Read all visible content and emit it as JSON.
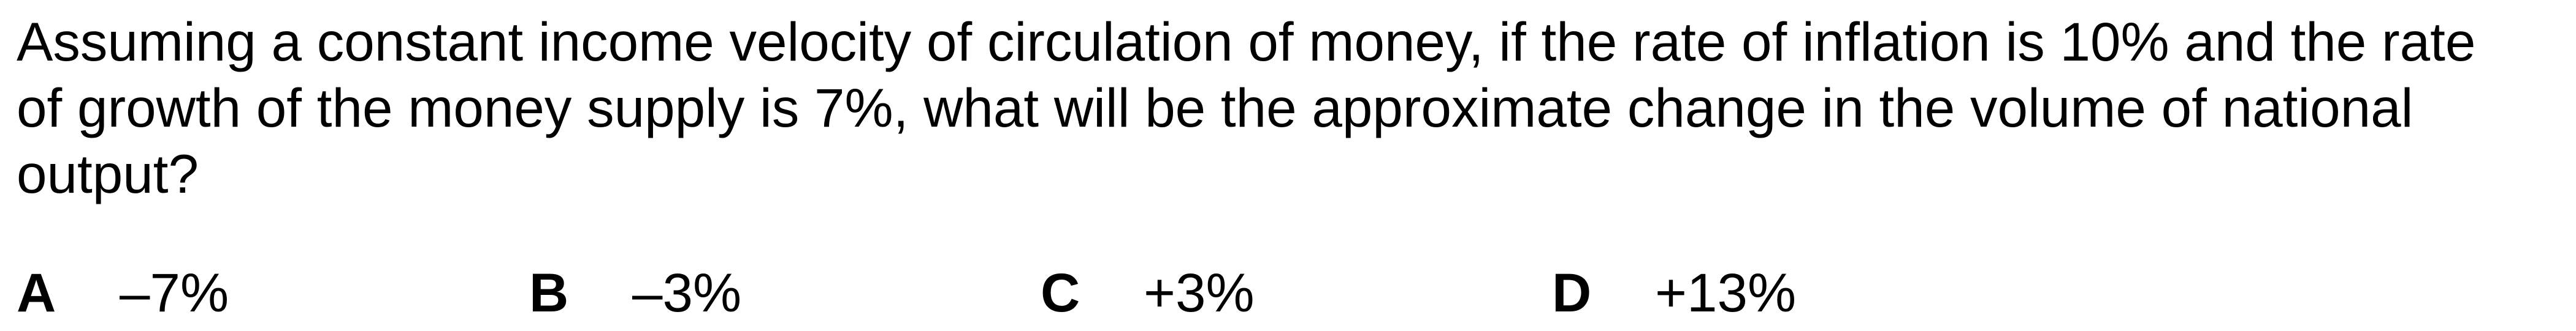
{
  "question": {
    "text": "Assuming a constant income velocity of circulation of money, if the rate of inflation is 10% and the rate of growth of the money supply is 7%, what will be the approximate change in the volume of national output?"
  },
  "options": [
    {
      "letter": "A",
      "value": "–7%"
    },
    {
      "letter": "B",
      "value": "–3%"
    },
    {
      "letter": "C",
      "value": "+3%"
    },
    {
      "letter": "D",
      "value": "+13%"
    }
  ]
}
